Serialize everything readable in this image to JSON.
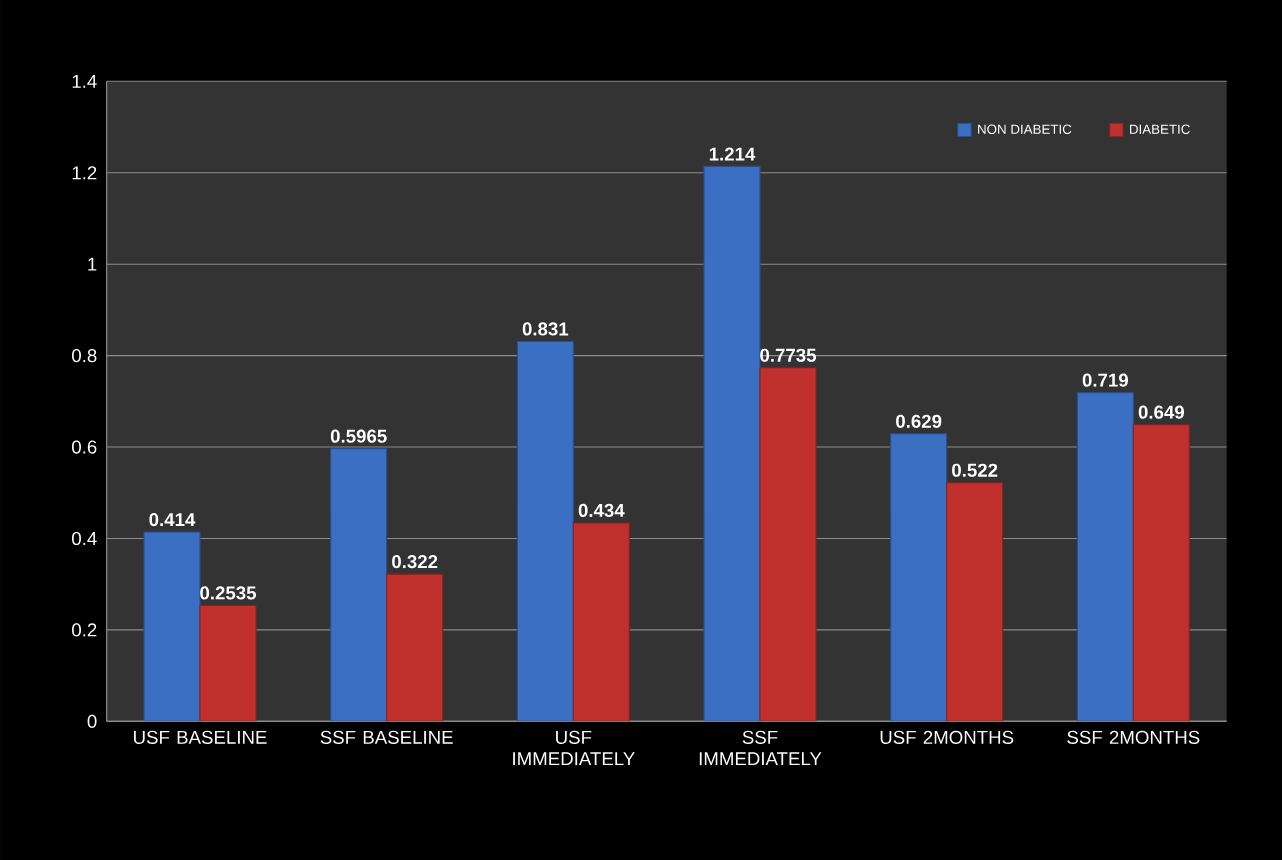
{
  "chart_data": {
    "type": "bar",
    "categories": [
      "USF BASELINE",
      "SSF BASELINE",
      "USF IMMEDIATELY",
      "SSF IMMEDIATELY",
      "USF 2MONTHS",
      "SSF 2MONTHS"
    ],
    "series": [
      {
        "name": "NON DIABETIC",
        "color": "#3a6fc4",
        "values": [
          0.414,
          0.5965,
          0.831,
          1.214,
          0.629,
          0.719
        ]
      },
      {
        "name": "DIABETIC",
        "color": "#c0302c",
        "values": [
          0.2535,
          0.322,
          0.434,
          0.7735,
          0.522,
          0.649
        ]
      }
    ],
    "ylim": [
      0,
      1.4
    ],
    "yticks": [
      0,
      0.2,
      0.4,
      0.6,
      0.8,
      1,
      1.2,
      1.4
    ],
    "grid": "y",
    "legend": "top right",
    "data_labels": true
  }
}
